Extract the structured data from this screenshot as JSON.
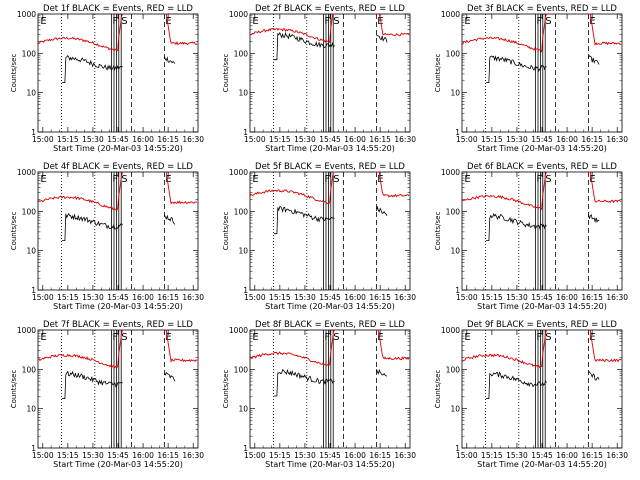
{
  "figure": {
    "colors": {
      "events": "#000000",
      "lld": "#dd0000",
      "axes": "#000000"
    }
  },
  "chart_data": [
    {
      "type": "line",
      "title": "Det 1f BLACK = Events, RED = LLD",
      "xlabel": "Start Time (20-Mar-03 14:55:20)",
      "ylabel": "Counts/sec",
      "y_scale": "log",
      "ylim": [
        1,
        1000
      ],
      "y_ticks": [
        "1",
        "10",
        "100",
        "1000"
      ],
      "x_ticks": [
        "15:00",
        "15:15",
        "15:30",
        "15:45",
        "16:00",
        "16:15",
        "16:30"
      ],
      "marker_labels": [
        "E",
        "F",
        "S",
        "E"
      ],
      "lld_profile": "low",
      "series": [
        {
          "name": "Events",
          "approx_level": 60
        },
        {
          "name": "LLD",
          "approx_level": 180
        }
      ]
    },
    {
      "type": "line",
      "title": "Det 2f BLACK = Events, RED = LLD",
      "xlabel": "Start Time (20-Mar-03 14:55:20)",
      "ylabel": "Counts/sec",
      "y_scale": "log",
      "ylim": [
        1,
        1000
      ],
      "y_ticks": [
        "1",
        "10",
        "100",
        "1000"
      ],
      "x_ticks": [
        "15:00",
        "15:15",
        "15:30",
        "15:45",
        "16:00",
        "16:15",
        "16:30"
      ],
      "marker_labels": [
        "E",
        "F",
        "S",
        "E"
      ],
      "lld_profile": "high",
      "series": [
        {
          "name": "Events",
          "approx_level": 230
        },
        {
          "name": "LLD",
          "approx_level": 300
        }
      ]
    },
    {
      "type": "line",
      "title": "Det 3f BLACK = Events, RED = LLD",
      "xlabel": "Start Time (20-Mar-03 14:55:20)",
      "ylabel": "Counts/sec",
      "y_scale": "log",
      "ylim": [
        1,
        1000
      ],
      "y_ticks": [
        "1",
        "10",
        "100",
        "1000"
      ],
      "x_ticks": [
        "15:00",
        "15:15",
        "15:30",
        "15:45",
        "16:00",
        "16:15",
        "16:30"
      ],
      "marker_labels": [
        "E",
        "F",
        "S",
        "E"
      ],
      "lld_profile": "low",
      "series": [
        {
          "name": "Events",
          "approx_level": 60
        },
        {
          "name": "LLD",
          "approx_level": 180
        }
      ]
    },
    {
      "type": "line",
      "title": "Det 4f BLACK = Events, RED = LLD",
      "xlabel": "Start Time (20-Mar-03 14:55:20)",
      "ylabel": "Counts/sec",
      "y_scale": "log",
      "ylim": [
        1,
        1000
      ],
      "y_ticks": [
        "1",
        "10",
        "100",
        "1000"
      ],
      "x_ticks": [
        "15:00",
        "15:15",
        "15:30",
        "15:45",
        "16:00",
        "16:15",
        "16:30"
      ],
      "marker_labels": [
        "E",
        "F",
        "S",
        "E"
      ],
      "lld_profile": "low",
      "series": [
        {
          "name": "Events",
          "approx_level": 60
        },
        {
          "name": "LLD",
          "approx_level": 170
        }
      ]
    },
    {
      "type": "line",
      "title": "Det 5f BLACK = Events, RED = LLD",
      "xlabel": "Start Time (20-Mar-03 14:55:20)",
      "ylabel": "Counts/sec",
      "y_scale": "log",
      "ylim": [
        1,
        1000
      ],
      "y_ticks": [
        "1",
        "10",
        "100",
        "1000"
      ],
      "x_ticks": [
        "15:00",
        "15:15",
        "15:30",
        "15:45",
        "16:00",
        "16:15",
        "16:30"
      ],
      "marker_labels": [
        "E",
        "F",
        "S",
        "E"
      ],
      "lld_profile": "mid",
      "series": [
        {
          "name": "Events",
          "approx_level": 90
        },
        {
          "name": "LLD",
          "approx_level": 250
        }
      ]
    },
    {
      "type": "line",
      "title": "Det 6f BLACK = Events, RED = LLD",
      "xlabel": "Start Time (20-Mar-03 14:55:20)",
      "ylabel": "Counts/sec",
      "y_scale": "log",
      "ylim": [
        1,
        1000
      ],
      "y_ticks": [
        "1",
        "10",
        "100",
        "1000"
      ],
      "x_ticks": [
        "15:00",
        "15:15",
        "15:30",
        "15:45",
        "16:00",
        "16:15",
        "16:30"
      ],
      "marker_labels": [
        "E",
        "F",
        "S",
        "E"
      ],
      "lld_profile": "low",
      "series": [
        {
          "name": "Events",
          "approx_level": 60
        },
        {
          "name": "LLD",
          "approx_level": 180
        }
      ]
    },
    {
      "type": "line",
      "title": "Det 7f BLACK = Events, RED = LLD",
      "xlabel": "Start Time (20-Mar-03 14:55:20)",
      "ylabel": "Counts/sec",
      "y_scale": "log",
      "ylim": [
        1,
        1000
      ],
      "y_ticks": [
        "1",
        "10",
        "100",
        "1000"
      ],
      "x_ticks": [
        "15:00",
        "15:15",
        "15:30",
        "15:45",
        "16:00",
        "16:15",
        "16:30"
      ],
      "marker_labels": [
        "E",
        "F",
        "S",
        "E"
      ],
      "lld_profile": "low",
      "series": [
        {
          "name": "Events",
          "approx_level": 60
        },
        {
          "name": "LLD",
          "approx_level": 170
        }
      ]
    },
    {
      "type": "line",
      "title": "Det 8f BLACK = Events, RED = LLD",
      "xlabel": "Start Time (20-Mar-03 14:55:20)",
      "ylabel": "Counts/sec",
      "y_scale": "log",
      "ylim": [
        1,
        1000
      ],
      "y_ticks": [
        "1",
        "10",
        "100",
        "1000"
      ],
      "x_ticks": [
        "15:00",
        "15:15",
        "15:30",
        "15:45",
        "16:00",
        "16:15",
        "16:30"
      ],
      "marker_labels": [
        "E",
        "F",
        "S",
        "E"
      ],
      "lld_profile": "mid",
      "series": [
        {
          "name": "Events",
          "approx_level": 70
        },
        {
          "name": "LLD",
          "approx_level": 190
        }
      ]
    },
    {
      "type": "line",
      "title": "Det 9f BLACK = Events, RED = LLD",
      "xlabel": "Start Time (20-Mar-03 14:55:20)",
      "ylabel": "Counts/sec",
      "y_scale": "log",
      "ylim": [
        1,
        1000
      ],
      "y_ticks": [
        "1",
        "10",
        "100",
        "1000"
      ],
      "x_ticks": [
        "15:00",
        "15:15",
        "15:30",
        "15:45",
        "16:00",
        "16:15",
        "16:30"
      ],
      "marker_labels": [
        "E",
        "F",
        "S",
        "E"
      ],
      "lld_profile": "low",
      "series": [
        {
          "name": "Events",
          "approx_level": 60
        },
        {
          "name": "LLD",
          "approx_level": 170
        }
      ]
    }
  ]
}
